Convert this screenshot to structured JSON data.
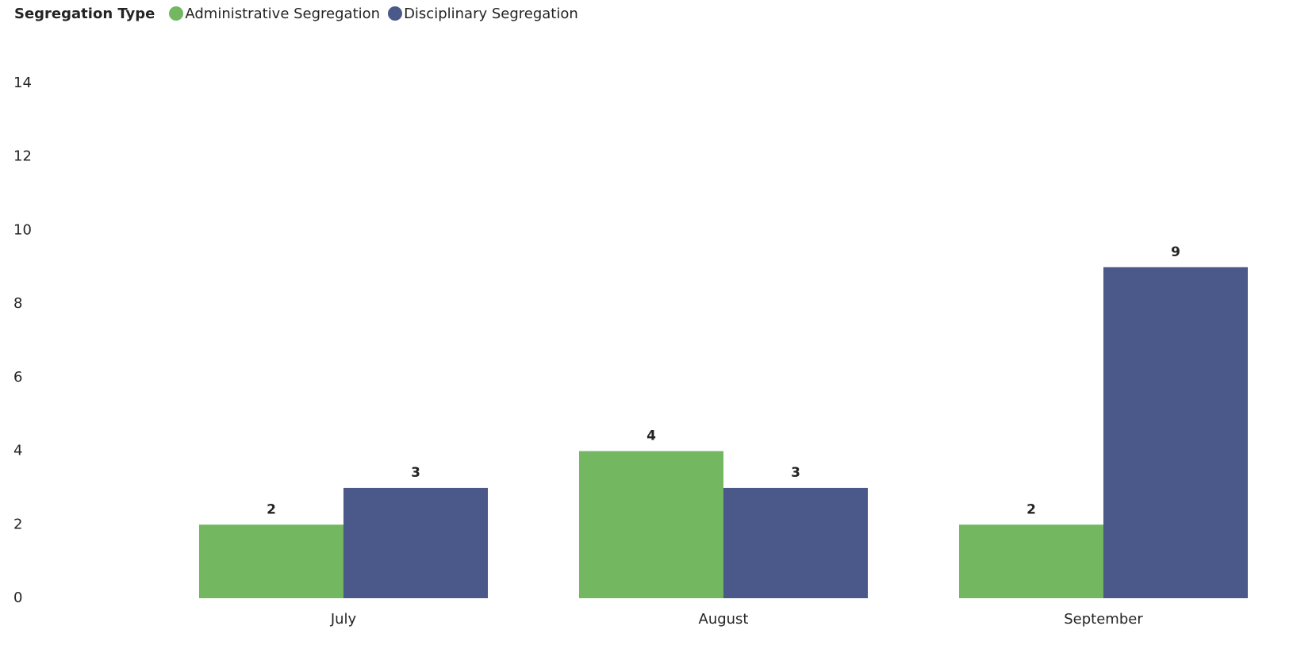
{
  "chart_data": {
    "type": "bar",
    "legend": {
      "title": "Segregation Type",
      "placement": "top-left"
    },
    "categories": [
      "July",
      "August",
      "September"
    ],
    "series": [
      {
        "name": "Administrative Segregation",
        "color": "#73b761",
        "values": [
          2,
          4,
          2
        ]
      },
      {
        "name": "Disciplinary Segregation",
        "color": "#4a588a",
        "values": [
          3,
          3,
          9
        ]
      }
    ],
    "y_ticks": [
      0,
      2,
      4,
      6,
      8,
      10,
      12,
      14
    ],
    "ylim": [
      0,
      14
    ],
    "grid": false,
    "data_labels": true
  }
}
